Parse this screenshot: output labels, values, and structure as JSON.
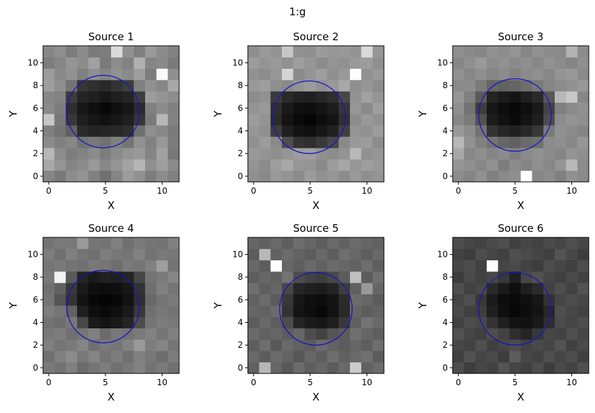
{
  "figure": {
    "suptitle": "1:g"
  },
  "chart_data": [
    {
      "type": "heatmap",
      "title": "Source 1",
      "xlabel": "X",
      "ylabel": "Y",
      "xlim": [
        -0.5,
        11.5
      ],
      "ylim": [
        -0.5,
        11.5
      ],
      "xticks": [
        0,
        5,
        10
      ],
      "yticks": [
        0,
        2,
        4,
        6,
        8,
        10
      ],
      "colormap": "gray",
      "circle": {
        "cx": 4.8,
        "cy": 5.7,
        "r": 3.2,
        "color": "#1515c8"
      },
      "grid": false,
      "values": [
        [
          0.52,
          0.47,
          0.55,
          0.58,
          0.5,
          0.44,
          0.52,
          0.61,
          0.57,
          0.49,
          0.55,
          0.5
        ],
        [
          0.66,
          0.58,
          0.52,
          0.55,
          0.6,
          0.53,
          0.58,
          0.64,
          0.71,
          0.56,
          0.62,
          0.54
        ],
        [
          0.72,
          0.55,
          0.49,
          0.51,
          0.55,
          0.49,
          0.54,
          0.58,
          0.6,
          0.52,
          0.63,
          0.47
        ],
        [
          0.55,
          0.5,
          0.53,
          0.45,
          0.47,
          0.44,
          0.5,
          0.46,
          0.57,
          0.51,
          0.6,
          0.49
        ],
        [
          0.5,
          0.45,
          0.38,
          0.17,
          0.14,
          0.15,
          0.16,
          0.18,
          0.44,
          0.56,
          0.53,
          0.48
        ],
        [
          0.78,
          0.47,
          0.22,
          0.12,
          0.09,
          0.07,
          0.09,
          0.12,
          0.21,
          0.48,
          0.72,
          0.51
        ],
        [
          0.54,
          0.49,
          0.18,
          0.09,
          0.06,
          0.03,
          0.06,
          0.09,
          0.17,
          0.5,
          0.55,
          0.5
        ],
        [
          0.53,
          0.51,
          0.23,
          0.14,
          0.12,
          0.09,
          0.12,
          0.14,
          0.24,
          0.61,
          0.58,
          0.55
        ],
        [
          0.62,
          0.56,
          0.45,
          0.21,
          0.18,
          0.16,
          0.2,
          0.24,
          0.5,
          0.57,
          0.53,
          0.66
        ],
        [
          0.61,
          0.54,
          0.57,
          0.5,
          0.56,
          0.52,
          0.57,
          0.54,
          0.62,
          0.49,
          0.98,
          0.56
        ],
        [
          0.49,
          0.52,
          0.58,
          0.55,
          0.63,
          0.48,
          0.55,
          0.51,
          0.69,
          0.52,
          0.54,
          0.48
        ],
        [
          0.53,
          0.56,
          0.49,
          0.55,
          0.48,
          0.49,
          0.86,
          0.57,
          0.5,
          0.6,
          0.55,
          0.51
        ]
      ]
    },
    {
      "type": "heatmap",
      "title": "Source 2",
      "xlabel": "X",
      "ylabel": "Y",
      "xlim": [
        -0.5,
        11.5
      ],
      "ylim": [
        -0.5,
        11.5
      ],
      "xticks": [
        0,
        5,
        10
      ],
      "yticks": [
        0,
        2,
        4,
        6,
        8,
        10
      ],
      "colormap": "gray",
      "circle": {
        "cx": 4.9,
        "cy": 5.2,
        "r": 3.2,
        "color": "#1515c8"
      },
      "grid": false,
      "values": [
        [
          0.56,
          0.54,
          0.6,
          0.58,
          0.55,
          0.61,
          0.57,
          0.59,
          0.55,
          0.6,
          0.56,
          0.58
        ],
        [
          0.58,
          0.55,
          0.62,
          0.66,
          0.59,
          0.58,
          0.54,
          0.61,
          0.65,
          0.59,
          0.62,
          0.6
        ],
        [
          0.6,
          0.58,
          0.56,
          0.59,
          0.61,
          0.62,
          0.57,
          0.55,
          0.58,
          0.72,
          0.57,
          0.59
        ],
        [
          0.57,
          0.61,
          0.54,
          0.3,
          0.2,
          0.18,
          0.22,
          0.28,
          0.54,
          0.6,
          0.61,
          0.55
        ],
        [
          0.59,
          0.56,
          0.24,
          0.12,
          0.08,
          0.06,
          0.09,
          0.13,
          0.25,
          0.58,
          0.57,
          0.61
        ],
        [
          0.61,
          0.58,
          0.17,
          0.08,
          0.04,
          0.02,
          0.05,
          0.08,
          0.19,
          0.55,
          0.6,
          0.57
        ],
        [
          0.58,
          0.6,
          0.18,
          0.1,
          0.06,
          0.05,
          0.08,
          0.11,
          0.21,
          0.59,
          0.54,
          0.62
        ],
        [
          0.55,
          0.57,
          0.23,
          0.16,
          0.13,
          0.12,
          0.15,
          0.18,
          0.28,
          0.57,
          0.63,
          0.58
        ],
        [
          0.6,
          0.62,
          0.56,
          0.54,
          0.58,
          0.61,
          0.57,
          0.6,
          0.66,
          0.56,
          0.59,
          0.55
        ],
        [
          0.57,
          0.55,
          0.59,
          0.83,
          0.55,
          0.58,
          0.62,
          0.56,
          0.6,
          0.99,
          0.57,
          0.6
        ],
        [
          0.61,
          0.58,
          0.6,
          0.57,
          0.62,
          0.59,
          0.55,
          0.58,
          0.57,
          0.6,
          0.61,
          0.56
        ],
        [
          0.56,
          0.6,
          0.58,
          0.78,
          0.57,
          0.56,
          0.61,
          0.59,
          0.6,
          0.58,
          0.85,
          0.59
        ]
      ]
    },
    {
      "type": "heatmap",
      "title": "Source 3",
      "xlabel": "X",
      "ylabel": "Y",
      "xlim": [
        -0.5,
        11.5
      ],
      "ylim": [
        -0.5,
        11.5
      ],
      "xticks": [
        0,
        5,
        10
      ],
      "yticks": [
        0,
        2,
        4,
        6,
        8,
        10
      ],
      "colormap": "gray",
      "circle": {
        "cx": 5.0,
        "cy": 5.4,
        "r": 3.2,
        "color": "#1515c8"
      },
      "grid": false,
      "values": [
        [
          0.55,
          0.52,
          0.57,
          0.5,
          0.54,
          0.56,
          1.0,
          0.53,
          0.55,
          0.5,
          0.57,
          0.54
        ],
        [
          0.58,
          0.56,
          0.53,
          0.57,
          0.49,
          0.55,
          0.52,
          0.56,
          0.53,
          0.58,
          0.72,
          0.55
        ],
        [
          0.66,
          0.53,
          0.56,
          0.52,
          0.55,
          0.5,
          0.54,
          0.57,
          0.55,
          0.52,
          0.58,
          0.56
        ],
        [
          0.72,
          0.57,
          0.5,
          0.45,
          0.4,
          0.38,
          0.42,
          0.44,
          0.55,
          0.56,
          0.53,
          0.59
        ],
        [
          0.6,
          0.55,
          0.45,
          0.2,
          0.15,
          0.13,
          0.16,
          0.22,
          0.48,
          0.57,
          0.55,
          0.52
        ],
        [
          0.53,
          0.48,
          0.32,
          0.11,
          0.07,
          0.04,
          0.08,
          0.12,
          0.3,
          0.55,
          0.58,
          0.56
        ],
        [
          0.56,
          0.45,
          0.24,
          0.09,
          0.05,
          0.03,
          0.06,
          0.1,
          0.26,
          0.5,
          0.54,
          0.57
        ],
        [
          0.59,
          0.5,
          0.35,
          0.14,
          0.1,
          0.08,
          0.12,
          0.16,
          0.34,
          0.72,
          0.78,
          0.53
        ],
        [
          0.54,
          0.55,
          0.48,
          0.4,
          0.38,
          0.4,
          0.43,
          0.48,
          0.52,
          0.55,
          0.57,
          0.6
        ],
        [
          0.57,
          0.53,
          0.56,
          0.52,
          0.55,
          0.51,
          0.54,
          0.56,
          0.53,
          0.58,
          0.6,
          0.54
        ],
        [
          0.53,
          0.56,
          0.6,
          0.55,
          0.57,
          0.54,
          0.56,
          0.53,
          0.57,
          0.55,
          0.52,
          0.56
        ],
        [
          0.56,
          0.54,
          0.53,
          0.57,
          0.55,
          0.58,
          0.53,
          0.57,
          0.55,
          0.54,
          0.7,
          0.55
        ]
      ]
    },
    {
      "type": "heatmap",
      "title": "Source 4",
      "xlabel": "X",
      "ylabel": "Y",
      "xlim": [
        -0.5,
        11.5
      ],
      "ylim": [
        -0.5,
        11.5
      ],
      "xticks": [
        0,
        5,
        10
      ],
      "yticks": [
        0,
        2,
        4,
        6,
        8,
        10
      ],
      "colormap": "gray",
      "circle": {
        "cx": 4.8,
        "cy": 5.4,
        "r": 3.2,
        "color": "#1515c8"
      },
      "grid": false,
      "values": [
        [
          0.48,
          0.45,
          0.5,
          0.42,
          0.46,
          0.49,
          0.44,
          0.47,
          0.51,
          0.45,
          0.48,
          0.44
        ],
        [
          0.44,
          0.5,
          0.55,
          0.47,
          0.52,
          0.45,
          0.49,
          0.44,
          0.5,
          0.47,
          0.43,
          0.49
        ],
        [
          0.5,
          0.46,
          0.48,
          0.52,
          0.44,
          0.48,
          0.46,
          0.51,
          0.6,
          0.49,
          0.52,
          0.46
        ],
        [
          0.47,
          0.49,
          0.44,
          0.46,
          0.5,
          0.42,
          0.47,
          0.45,
          0.48,
          0.51,
          0.46,
          0.5
        ],
        [
          0.45,
          0.43,
          0.47,
          0.28,
          0.1,
          0.08,
          0.1,
          0.14,
          0.3,
          0.46,
          0.49,
          0.47
        ],
        [
          0.49,
          0.46,
          0.38,
          0.12,
          0.06,
          0.04,
          0.06,
          0.1,
          0.22,
          0.44,
          0.47,
          0.45
        ],
        [
          0.46,
          0.33,
          0.2,
          0.08,
          0.03,
          0.02,
          0.03,
          0.07,
          0.18,
          0.41,
          0.46,
          0.48
        ],
        [
          0.44,
          0.38,
          0.22,
          0.1,
          0.06,
          0.05,
          0.06,
          0.09,
          0.2,
          0.43,
          0.5,
          0.46
        ],
        [
          0.48,
          0.95,
          0.35,
          0.14,
          0.1,
          0.13,
          0.12,
          0.14,
          0.27,
          0.45,
          0.48,
          0.52
        ],
        [
          0.46,
          0.48,
          0.45,
          0.44,
          0.47,
          0.46,
          0.43,
          0.48,
          0.46,
          0.5,
          0.62,
          0.45
        ],
        [
          0.49,
          0.44,
          0.5,
          0.46,
          0.44,
          0.49,
          0.47,
          0.46,
          0.51,
          0.45,
          0.48,
          0.47
        ],
        [
          0.45,
          0.48,
          0.47,
          0.6,
          0.46,
          0.45,
          0.5,
          0.44,
          0.48,
          0.46,
          0.45,
          0.5
        ]
      ]
    },
    {
      "type": "heatmap",
      "title": "Source 5",
      "xlabel": "X",
      "ylabel": "Y",
      "xlim": [
        -0.5,
        11.5
      ],
      "ylim": [
        -0.5,
        11.5
      ],
      "xticks": [
        0,
        5,
        10
      ],
      "yticks": [
        0,
        2,
        4,
        6,
        8,
        10
      ],
      "colormap": "gray",
      "circle": {
        "cx": 5.5,
        "cy": 5.2,
        "r": 3.2,
        "color": "#1515c8"
      },
      "grid": false,
      "values": [
        [
          0.38,
          0.72,
          0.4,
          0.35,
          0.42,
          0.37,
          0.4,
          0.36,
          0.41,
          0.8,
          0.38,
          0.42
        ],
        [
          0.41,
          0.36,
          0.42,
          0.39,
          0.34,
          0.4,
          0.37,
          0.43,
          0.38,
          0.41,
          0.44,
          0.36
        ],
        [
          0.37,
          0.43,
          0.35,
          0.41,
          0.38,
          0.36,
          0.42,
          0.39,
          0.36,
          0.4,
          0.37,
          0.43
        ],
        [
          0.42,
          0.38,
          0.4,
          0.36,
          0.4,
          0.3,
          0.26,
          0.33,
          0.36,
          0.44,
          0.4,
          0.37
        ],
        [
          0.36,
          0.41,
          0.37,
          0.3,
          0.14,
          0.1,
          0.09,
          0.12,
          0.22,
          0.38,
          0.45,
          0.41
        ],
        [
          0.4,
          0.38,
          0.42,
          0.2,
          0.08,
          0.05,
          0.03,
          0.07,
          0.16,
          0.4,
          0.36,
          0.39
        ],
        [
          0.38,
          0.42,
          0.36,
          0.22,
          0.09,
          0.06,
          0.05,
          0.08,
          0.17,
          0.42,
          0.4,
          0.36
        ],
        [
          0.43,
          0.37,
          0.4,
          0.28,
          0.15,
          0.12,
          0.11,
          0.14,
          0.24,
          0.38,
          0.6,
          0.4
        ],
        [
          0.37,
          0.4,
          0.38,
          0.45,
          0.3,
          0.26,
          0.24,
          0.28,
          0.36,
          0.75,
          0.36,
          0.44
        ],
        [
          0.41,
          0.36,
          1.0,
          0.4,
          0.37,
          0.41,
          0.38,
          0.42,
          0.4,
          0.38,
          0.43,
          0.37
        ],
        [
          0.36,
          0.72,
          0.38,
          0.42,
          0.39,
          0.36,
          0.41,
          0.37,
          0.43,
          0.4,
          0.37,
          0.41
        ],
        [
          0.4,
          0.38,
          0.41,
          0.37,
          0.43,
          0.4,
          0.37,
          0.41,
          0.38,
          0.42,
          0.4,
          0.38
        ]
      ]
    },
    {
      "type": "heatmap",
      "title": "Source 6",
      "xlabel": "X",
      "ylabel": "Y",
      "xlim": [
        -0.5,
        11.5
      ],
      "ylim": [
        -0.5,
        11.5
      ],
      "xticks": [
        0,
        5,
        10
      ],
      "yticks": [
        0,
        2,
        4,
        6,
        8,
        10
      ],
      "colormap": "gray",
      "circle": {
        "cx": 5.0,
        "cy": 5.2,
        "r": 3.2,
        "color": "#1515c8"
      },
      "grid": false,
      "values": [
        [
          0.3,
          0.24,
          0.28,
          0.26,
          0.33,
          0.27,
          0.25,
          0.3,
          0.24,
          0.29,
          0.26,
          0.31
        ],
        [
          0.25,
          0.32,
          0.27,
          0.29,
          0.24,
          0.36,
          0.28,
          0.26,
          0.31,
          0.27,
          0.3,
          0.25
        ],
        [
          0.28,
          0.26,
          0.31,
          0.25,
          0.28,
          0.3,
          0.26,
          0.29,
          0.27,
          0.32,
          0.25,
          0.29
        ],
        [
          0.32,
          0.27,
          0.25,
          0.3,
          0.26,
          0.18,
          0.14,
          0.22,
          0.28,
          0.26,
          0.31,
          0.27
        ],
        [
          0.26,
          0.3,
          0.28,
          0.2,
          0.12,
          0.08,
          0.07,
          0.1,
          0.18,
          0.29,
          0.27,
          0.3
        ],
        [
          0.29,
          0.25,
          0.24,
          0.12,
          0.06,
          0.03,
          0.05,
          0.08,
          0.15,
          0.31,
          0.28,
          0.26
        ],
        [
          0.27,
          0.31,
          0.22,
          0.1,
          0.05,
          0.04,
          0.06,
          0.09,
          0.2,
          0.27,
          0.3,
          0.28
        ],
        [
          0.31,
          0.26,
          0.28,
          0.16,
          0.1,
          0.06,
          0.12,
          0.17,
          0.26,
          0.3,
          0.26,
          0.32
        ],
        [
          0.24,
          0.29,
          0.26,
          0.28,
          0.22,
          0.12,
          0.28,
          0.32,
          0.27,
          0.25,
          0.29,
          0.26
        ],
        [
          0.28,
          0.3,
          0.25,
          1.0,
          0.27,
          0.29,
          0.26,
          0.24,
          0.3,
          0.28,
          0.25,
          0.3
        ],
        [
          0.26,
          0.24,
          0.3,
          0.27,
          0.25,
          0.31,
          0.29,
          0.27,
          0.25,
          0.33,
          0.28,
          0.24
        ],
        [
          0.3,
          0.27,
          0.26,
          0.29,
          0.31,
          0.25,
          0.28,
          0.26,
          0.29,
          0.27,
          0.31,
          0.28
        ]
      ]
    }
  ]
}
